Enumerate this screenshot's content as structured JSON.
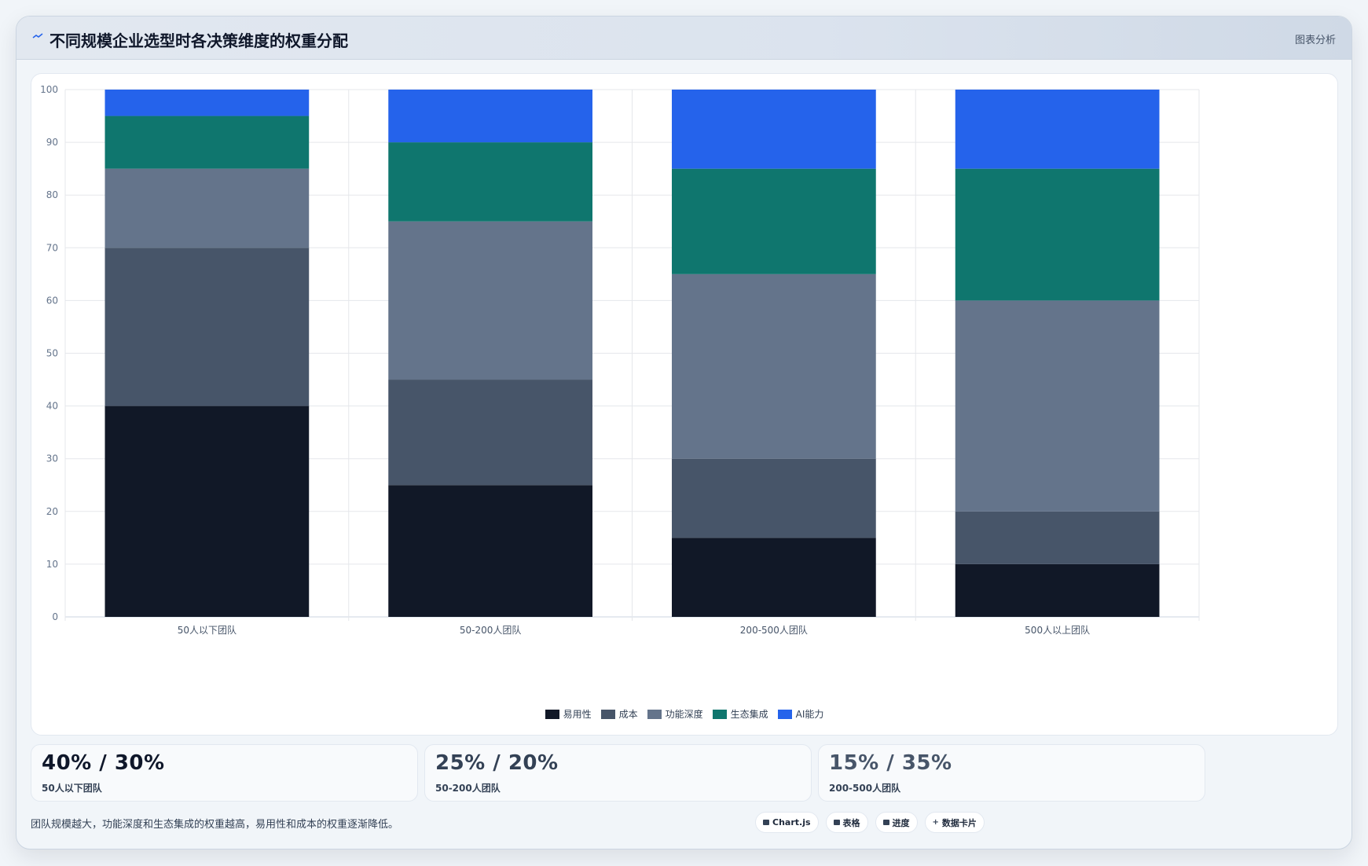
{
  "header": {
    "title": "不同规模企业选型时各决策维度的权重分配",
    "link_label": "图表分析",
    "icon": "trend-line-icon"
  },
  "chart_data": {
    "type": "bar",
    "stacked": true,
    "categories": [
      "50人以下团队",
      "50-200人团队",
      "200-500人团队",
      "500人以上团队"
    ],
    "series": [
      {
        "name": "易用性",
        "color": "#111827",
        "values": [
          40,
          25,
          15,
          10
        ]
      },
      {
        "name": "成本",
        "color": "#475569",
        "values": [
          30,
          20,
          15,
          10
        ]
      },
      {
        "name": "功能深度",
        "color": "#64748b",
        "values": [
          15,
          30,
          35,
          40
        ]
      },
      {
        "name": "生态集成",
        "color": "#0f766e",
        "values": [
          10,
          15,
          20,
          25
        ]
      },
      {
        "name": "AI能力",
        "color": "#2563eb",
        "values": [
          5,
          10,
          15,
          15
        ]
      }
    ],
    "ylim": [
      0,
      100
    ],
    "yticks": [
      "0",
      "10",
      "20",
      "30",
      "40",
      "50",
      "60",
      "70",
      "80",
      "90",
      "100"
    ],
    "grid": true,
    "legend_position": "bottom"
  },
  "stats": [
    {
      "value": "40% / 30%",
      "label": "50人以下团队",
      "color": "#0f172a"
    },
    {
      "value": "25% / 20%",
      "label": "50-200人团队",
      "color": "#334155"
    },
    {
      "value": "15% / 35%",
      "label": "200-500人团队",
      "color": "#475569"
    }
  ],
  "footer": {
    "note": "团队规模越大，功能深度和生态集成的权重越高，易用性和成本的权重逐渐降低。",
    "tags": [
      {
        "label": "Chart.js",
        "icon": "chart-icon"
      },
      {
        "label": "表格",
        "icon": "table-icon"
      },
      {
        "label": "进度",
        "icon": "progress-icon"
      },
      {
        "label": "数据卡片",
        "icon": "plus-icon"
      }
    ]
  }
}
